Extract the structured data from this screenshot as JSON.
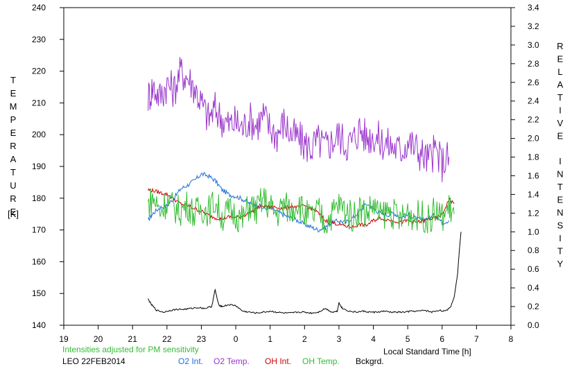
{
  "chart_data": {
    "type": "line",
    "xlabel": "Local Standard Time [h]",
    "ylabel_left": "TEMPERATURE",
    "ylabel_left_unit": "[K]",
    "ylabel_right": "RELATIVE INTENSITY",
    "x_ticks": [
      "19",
      "20",
      "21",
      "22",
      "23",
      "0",
      "1",
      "2",
      "3",
      "4",
      "5",
      "6",
      "7",
      "8"
    ],
    "y_left_ticks": [
      "140",
      "150",
      "160",
      "170",
      "180",
      "190",
      "200",
      "210",
      "220",
      "230",
      "240"
    ],
    "y_right_ticks": [
      "0.0",
      "0.2",
      "0.4",
      "0.6",
      "0.8",
      "1.0",
      "1.2",
      "1.4",
      "1.6",
      "1.8",
      "2.0",
      "2.2",
      "2.4",
      "2.6",
      "2.8",
      "3.0",
      "3.2",
      "3.4"
    ],
    "xlim": [
      19,
      32
    ],
    "ylim_left": [
      140,
      240
    ],
    "ylim_right": [
      0,
      3.4
    ],
    "x_start_hour": 21.4,
    "x_end_hour": 30.35,
    "note": "Intensities adjusted for PM sensitivity",
    "site_date": "LEO 22FEB2014",
    "series": [
      {
        "name": "O2 Int.",
        "axis": "right",
        "color": "#1a6fd6",
        "x": [
          21.45,
          21.6,
          21.8,
          22.0,
          22.2,
          22.4,
          22.6,
          22.8,
          23.0,
          23.2,
          23.4,
          23.6,
          23.8,
          24.0,
          24.2,
          24.4,
          24.6,
          24.8,
          25.0,
          25.2,
          25.4,
          25.6,
          25.8,
          26.0,
          26.2,
          26.4,
          26.6,
          26.8,
          27.0,
          27.2,
          27.4,
          27.6,
          27.8,
          28.0,
          28.2,
          28.4,
          28.6,
          28.8,
          29.0,
          29.2,
          29.4,
          29.6,
          29.8,
          30.0,
          30.2
        ],
        "y": [
          1.12,
          1.2,
          1.26,
          1.28,
          1.36,
          1.46,
          1.5,
          1.55,
          1.62,
          1.6,
          1.55,
          1.45,
          1.4,
          1.38,
          1.35,
          1.3,
          1.3,
          1.25,
          1.25,
          1.22,
          1.18,
          1.15,
          1.12,
          1.08,
          1.05,
          1.02,
          1.05,
          1.1,
          1.12,
          1.1,
          1.15,
          1.22,
          1.3,
          1.25,
          1.2,
          1.18,
          1.2,
          1.15,
          1.18,
          1.15,
          1.12,
          1.15,
          1.18,
          1.1,
          1.12
        ]
      },
      {
        "name": "O2 Temp.",
        "axis": "left",
        "color": "#9933cc",
        "x": [
          21.45,
          21.6,
          21.8,
          22.0,
          22.2,
          22.4,
          22.6,
          22.8,
          23.0,
          23.2,
          23.4,
          23.6,
          23.8,
          24.0,
          24.2,
          24.4,
          24.6,
          24.8,
          25.0,
          25.2,
          25.4,
          25.6,
          25.8,
          26.0,
          26.2,
          26.4,
          26.6,
          26.8,
          27.0,
          27.2,
          27.4,
          27.6,
          27.8,
          28.0,
          28.2,
          28.4,
          28.6,
          28.8,
          29.0,
          29.2,
          29.4,
          29.6,
          29.8,
          30.0,
          30.2
        ],
        "y": [
          212,
          215,
          212,
          216,
          214,
          220,
          218,
          215,
          210,
          205,
          208,
          205,
          203,
          204,
          202,
          205,
          203,
          206,
          202,
          200,
          204,
          200,
          199,
          197,
          196,
          198,
          196,
          198,
          200,
          197,
          198,
          202,
          199,
          200,
          198,
          197,
          196,
          195,
          198,
          196,
          194,
          192,
          195,
          191,
          193
        ]
      },
      {
        "name": "OH Int.",
        "axis": "right",
        "color": "#cc0000",
        "x": [
          21.45,
          21.6,
          21.8,
          22.0,
          22.2,
          22.4,
          22.6,
          22.8,
          23.0,
          23.2,
          23.4,
          23.6,
          23.8,
          24.0,
          24.2,
          24.4,
          24.6,
          24.8,
          25.0,
          25.2,
          25.4,
          25.6,
          25.8,
          26.0,
          26.2,
          26.4,
          26.6,
          26.8,
          27.0,
          27.2,
          27.4,
          27.6,
          27.8,
          28.0,
          28.2,
          28.4,
          28.6,
          28.8,
          29.0,
          29.2,
          29.4,
          29.6,
          29.8,
          30.0,
          30.2,
          30.35
        ],
        "y": [
          1.45,
          1.44,
          1.42,
          1.4,
          1.35,
          1.3,
          1.28,
          1.25,
          1.22,
          1.18,
          1.15,
          1.14,
          1.16,
          1.15,
          1.17,
          1.2,
          1.25,
          1.28,
          1.27,
          1.26,
          1.25,
          1.27,
          1.26,
          1.28,
          1.25,
          1.2,
          1.12,
          1.1,
          1.08,
          1.06,
          1.05,
          1.08,
          1.07,
          1.12,
          1.15,
          1.13,
          1.12,
          1.1,
          1.12,
          1.1,
          1.11,
          1.13,
          1.15,
          1.18,
          1.35,
          1.3
        ]
      },
      {
        "name": "OH Temp.",
        "axis": "left",
        "color": "#33bb33",
        "x": [
          21.45,
          21.6,
          21.8,
          22.0,
          22.2,
          22.4,
          22.6,
          22.8,
          23.0,
          23.2,
          23.4,
          23.6,
          23.8,
          24.0,
          24.2,
          24.4,
          24.6,
          24.8,
          25.0,
          25.2,
          25.4,
          25.6,
          25.8,
          26.0,
          26.2,
          26.4,
          26.6,
          26.8,
          27.0,
          27.2,
          27.4,
          27.6,
          27.8,
          28.0,
          28.2,
          28.4,
          28.6,
          28.8,
          29.0,
          29.2,
          29.4,
          29.6,
          29.8,
          30.0,
          30.2,
          30.35
        ],
        "y": [
          178,
          180,
          176,
          179,
          177,
          176,
          178,
          175,
          177,
          176,
          179,
          174,
          176,
          175,
          173,
          178,
          176,
          180,
          177,
          175,
          178,
          176,
          179,
          175,
          174,
          176,
          172,
          175,
          178,
          176,
          174,
          177,
          175,
          178,
          174,
          176,
          175,
          173,
          176,
          174,
          175,
          173,
          176,
          174,
          177,
          175
        ]
      },
      {
        "name": "Bckgrd.",
        "axis": "right",
        "color": "#000000",
        "x": [
          21.45,
          21.55,
          21.7,
          21.9,
          22.1,
          22.3,
          22.5,
          22.7,
          22.9,
          23.1,
          23.3,
          23.4,
          23.5,
          23.6,
          23.8,
          24.0,
          24.2,
          24.4,
          24.6,
          24.8,
          25.0,
          25.2,
          25.4,
          25.6,
          25.8,
          26.0,
          26.2,
          26.4,
          26.6,
          26.8,
          26.95,
          27.0,
          27.1,
          27.3,
          27.5,
          27.7,
          27.9,
          28.1,
          28.3,
          28.5,
          28.7,
          28.9,
          29.1,
          29.3,
          29.5,
          29.7,
          29.9,
          30.1,
          30.25,
          30.35,
          30.45,
          30.5,
          30.55
        ],
        "y": [
          0.28,
          0.22,
          0.16,
          0.14,
          0.16,
          0.17,
          0.17,
          0.18,
          0.19,
          0.18,
          0.2,
          0.38,
          0.22,
          0.2,
          0.22,
          0.21,
          0.15,
          0.14,
          0.13,
          0.14,
          0.15,
          0.14,
          0.13,
          0.13,
          0.14,
          0.14,
          0.13,
          0.14,
          0.18,
          0.14,
          0.15,
          0.24,
          0.18,
          0.15,
          0.14,
          0.15,
          0.14,
          0.14,
          0.15,
          0.14,
          0.14,
          0.14,
          0.15,
          0.15,
          0.16,
          0.14,
          0.16,
          0.15,
          0.2,
          0.3,
          0.55,
          0.8,
          1.0
        ]
      }
    ]
  }
}
